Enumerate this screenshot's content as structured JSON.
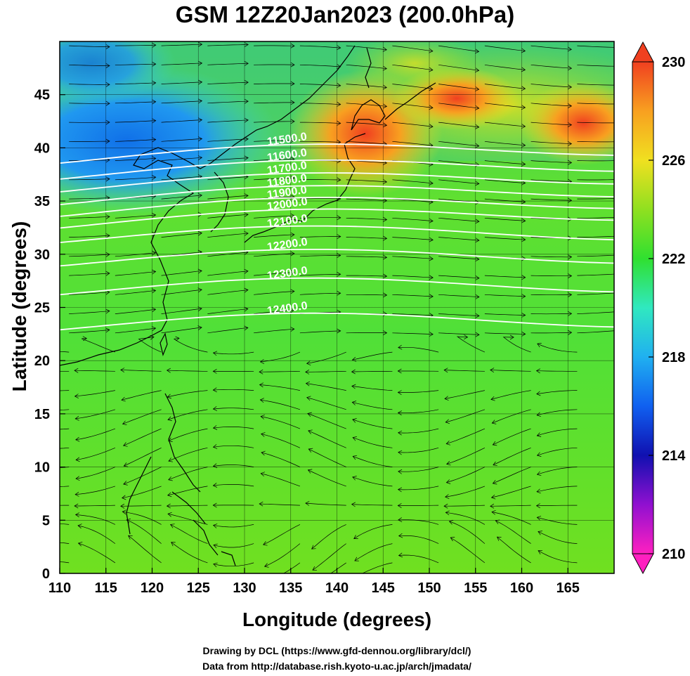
{
  "title": "GSM 12Z20Jan2023 (200.0hPa)",
  "xlabel": "Longitude (degrees)",
  "ylabel": "Latitude  (degrees)",
  "credits": [
    "Drawing by DCL (https://www.gfd-dennou.org/library/dcl/)",
    "Data from http://database.rish.kyoto-u.ac.jp/arch/jmadata/"
  ],
  "map": {
    "xlim": [
      110,
      170
    ],
    "ylim": [
      0,
      50
    ],
    "xticks": [
      110,
      115,
      120,
      125,
      130,
      135,
      140,
      145,
      150,
      155,
      160,
      165
    ],
    "yticks": [
      0,
      5,
      10,
      15,
      20,
      25,
      30,
      35,
      40,
      45
    ],
    "contour_labels": [
      "11500.0",
      "11600.0",
      "11700.0",
      "11800.0",
      "11900.0",
      "12000.0",
      "12100.0",
      "12200.0",
      "12300.0",
      "12400.0"
    ],
    "contour_line_color": "#ffffff",
    "streamline_color": "#000000"
  },
  "colorbar": {
    "ticks": [
      210,
      214,
      218,
      222,
      226,
      230
    ],
    "range": [
      210,
      230
    ],
    "stops": [
      "#ff20c0",
      "#9010d0",
      "#1010b0",
      "#1060f0",
      "#20b0f0",
      "#30e8c0",
      "#30e030",
      "#90e020",
      "#f0e020",
      "#f8a020",
      "#f04020"
    ]
  }
}
